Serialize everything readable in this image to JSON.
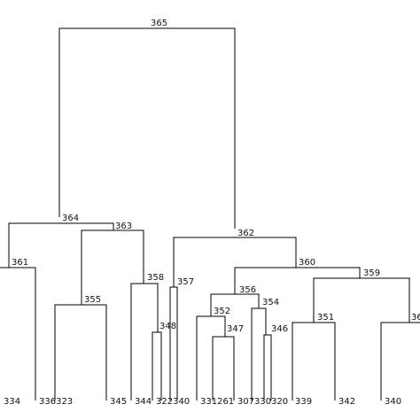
{
  "nodes": {
    "n365": "365",
    "n364": "364",
    "n363": "363",
    "n362": "362",
    "n361": "361",
    "n360": "360",
    "n359": "359",
    "n358": "358",
    "n357": "357",
    "n356": "356",
    "n355": "355",
    "n354": "354",
    "n352": "352",
    "n351": "351",
    "n348": "348",
    "n347": "347",
    "n346": "346",
    "n3xx": "36"
  },
  "leaves": {
    "l334": "334",
    "l336323": "336323",
    "l345": "345",
    "l344": "344",
    "l322340": "322340",
    "l331261": "331261",
    "l307": "307",
    "l330320": "330320",
    "l339": "339",
    "l342": "342",
    "l340": "340"
  }
}
